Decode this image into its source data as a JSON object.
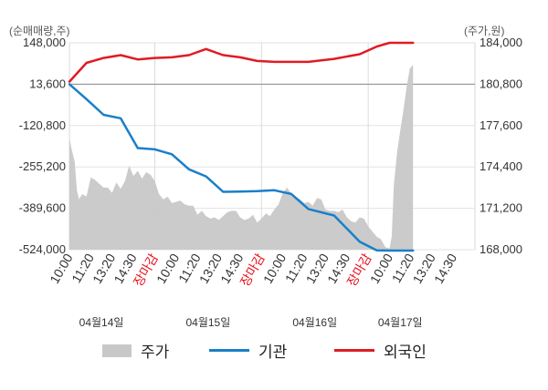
{
  "chart_data": {
    "type": "line",
    "left_axis_unit": "(순매매량,주)",
    "right_axis_unit": "(주가,원)",
    "left_ticks": [
      148000,
      13600,
      -120800,
      -255200,
      -389600,
      -524000
    ],
    "left_tick_labels": [
      "148,000",
      "13,600",
      "-120,800",
      "-255,200",
      "-389,600",
      "-524,000"
    ],
    "right_ticks": [
      184000,
      180800,
      177600,
      174400,
      171200,
      168000
    ],
    "right_tick_labels": [
      "184,000",
      "180,800",
      "177,600",
      "174,400",
      "171,200",
      "168,000"
    ],
    "ylim_left": [
      -524000,
      148000
    ],
    "ylim_right": [
      168000,
      184000
    ],
    "x_tick_labels": [
      "10:00",
      "11:20",
      "13:20",
      "14:30",
      "장마감",
      "10:00",
      "11:20",
      "13:20",
      "14:30",
      "장마감",
      "10:00",
      "11:20",
      "13:20",
      "14:30",
      "장마감",
      "10:00",
      "11:20",
      "13:20",
      "14:30"
    ],
    "close_label": "장마감",
    "date_labels": [
      "04월14일",
      "04월15일",
      "04월16일",
      "04월17일"
    ],
    "date_label_slots": [
      1.5,
      6.5,
      11.5,
      15.5
    ],
    "day_separator_slots": [
      4,
      9,
      14
    ],
    "slot_count": 19,
    "series": [
      {
        "name": "주가",
        "kind": "area",
        "color": "#c8c8c8",
        "axis": "right",
        "values": [
          [
            0,
            176600
          ],
          [
            0.1,
            175800
          ],
          [
            0.25,
            174800
          ],
          [
            0.35,
            172600
          ],
          [
            0.45,
            171900
          ],
          [
            0.6,
            172300
          ],
          [
            0.8,
            172100
          ],
          [
            1.0,
            173600
          ],
          [
            1.2,
            173400
          ],
          [
            1.4,
            173100
          ],
          [
            1.6,
            172800
          ],
          [
            1.8,
            172800
          ],
          [
            2.0,
            172400
          ],
          [
            2.2,
            173200
          ],
          [
            2.4,
            172700
          ],
          [
            2.6,
            173300
          ],
          [
            2.8,
            174500
          ],
          [
            3.0,
            173700
          ],
          [
            3.2,
            174100
          ],
          [
            3.4,
            173500
          ],
          [
            3.6,
            174000
          ],
          [
            3.8,
            173800
          ],
          [
            4.0,
            173300
          ],
          [
            4.2,
            172300
          ],
          [
            4.4,
            171900
          ],
          [
            4.6,
            172100
          ],
          [
            4.8,
            171600
          ],
          [
            5.0,
            171700
          ],
          [
            5.2,
            171800
          ],
          [
            5.4,
            171500
          ],
          [
            5.6,
            171400
          ],
          [
            5.8,
            171400
          ],
          [
            6.0,
            170700
          ],
          [
            6.2,
            171000
          ],
          [
            6.4,
            170600
          ],
          [
            6.6,
            170400
          ],
          [
            6.8,
            170500
          ],
          [
            7.0,
            170300
          ],
          [
            7.2,
            170600
          ],
          [
            7.4,
            170900
          ],
          [
            7.6,
            171000
          ],
          [
            7.8,
            171000
          ],
          [
            8.0,
            170500
          ],
          [
            8.2,
            170300
          ],
          [
            8.4,
            170400
          ],
          [
            8.6,
            170700
          ],
          [
            8.8,
            170100
          ],
          [
            9.0,
            170400
          ],
          [
            9.2,
            170800
          ],
          [
            9.4,
            170600
          ],
          [
            9.6,
            171100
          ],
          [
            9.8,
            171500
          ],
          [
            10.0,
            172400
          ],
          [
            10.2,
            172800
          ],
          [
            10.4,
            172300
          ],
          [
            10.6,
            172100
          ],
          [
            10.8,
            171900
          ],
          [
            11.0,
            171600
          ],
          [
            11.2,
            171700
          ],
          [
            11.4,
            171400
          ],
          [
            11.6,
            172000
          ],
          [
            11.8,
            171900
          ],
          [
            12.0,
            171100
          ],
          [
            12.2,
            171000
          ],
          [
            12.4,
            171000
          ],
          [
            12.6,
            170900
          ],
          [
            12.8,
            171100
          ],
          [
            13.0,
            170500
          ],
          [
            13.2,
            170200
          ],
          [
            13.4,
            170100
          ],
          [
            13.6,
            170500
          ],
          [
            13.8,
            170400
          ],
          [
            14.0,
            169800
          ],
          [
            14.2,
            169400
          ],
          [
            14.4,
            169000
          ],
          [
            14.6,
            168800
          ],
          [
            14.8,
            168200
          ],
          [
            15.0,
            168100
          ],
          [
            15.1,
            169000
          ],
          [
            15.2,
            173000
          ],
          [
            15.35,
            175500
          ],
          [
            15.5,
            177200
          ],
          [
            15.65,
            178800
          ],
          [
            15.8,
            180600
          ],
          [
            15.95,
            182000
          ],
          [
            16.05,
            182200
          ],
          [
            16.1,
            182300
          ]
        ]
      },
      {
        "name": "기관",
        "kind": "line",
        "color": "#1a7fc8",
        "axis": "left",
        "values": [
          [
            0,
            13600
          ],
          [
            0.8,
            -35000
          ],
          [
            1.6,
            -86000
          ],
          [
            2.4,
            -97000
          ],
          [
            3.2,
            -194000
          ],
          [
            4.0,
            -198000
          ],
          [
            4.8,
            -214000
          ],
          [
            5.6,
            -263000
          ],
          [
            6.4,
            -286000
          ],
          [
            7.2,
            -336000
          ],
          [
            8.0,
            -335000
          ],
          [
            8.8,
            -334000
          ],
          [
            9.6,
            -331000
          ],
          [
            10.4,
            -343000
          ],
          [
            11.2,
            -392000
          ],
          [
            12.4,
            -413000
          ],
          [
            13.6,
            -498000
          ],
          [
            14.4,
            -526000
          ],
          [
            15.0,
            -527000
          ],
          [
            16.1,
            -527000
          ]
        ]
      },
      {
        "name": "외국인",
        "kind": "line",
        "color": "#e01b24",
        "axis": "left",
        "values": [
          [
            0,
            22000
          ],
          [
            0.8,
            83000
          ],
          [
            1.6,
            99000
          ],
          [
            2.4,
            108000
          ],
          [
            3.2,
            94000
          ],
          [
            4.0,
            99000
          ],
          [
            4.8,
            101000
          ],
          [
            5.6,
            108000
          ],
          [
            6.4,
            128000
          ],
          [
            7.2,
            108000
          ],
          [
            8.0,
            101000
          ],
          [
            8.8,
            89000
          ],
          [
            9.6,
            86000
          ],
          [
            10.4,
            86000
          ],
          [
            11.2,
            86000
          ],
          [
            12.4,
            96000
          ],
          [
            13.6,
            111000
          ],
          [
            14.4,
            136000
          ],
          [
            15.0,
            148000
          ],
          [
            16.1,
            148000
          ]
        ]
      }
    ]
  },
  "legend": {
    "items": [
      {
        "label": "주가",
        "color": "#c8c8c8"
      },
      {
        "label": "기관",
        "color": "#1a7fc8"
      },
      {
        "label": "외국인",
        "color": "#e01b24"
      }
    ]
  }
}
